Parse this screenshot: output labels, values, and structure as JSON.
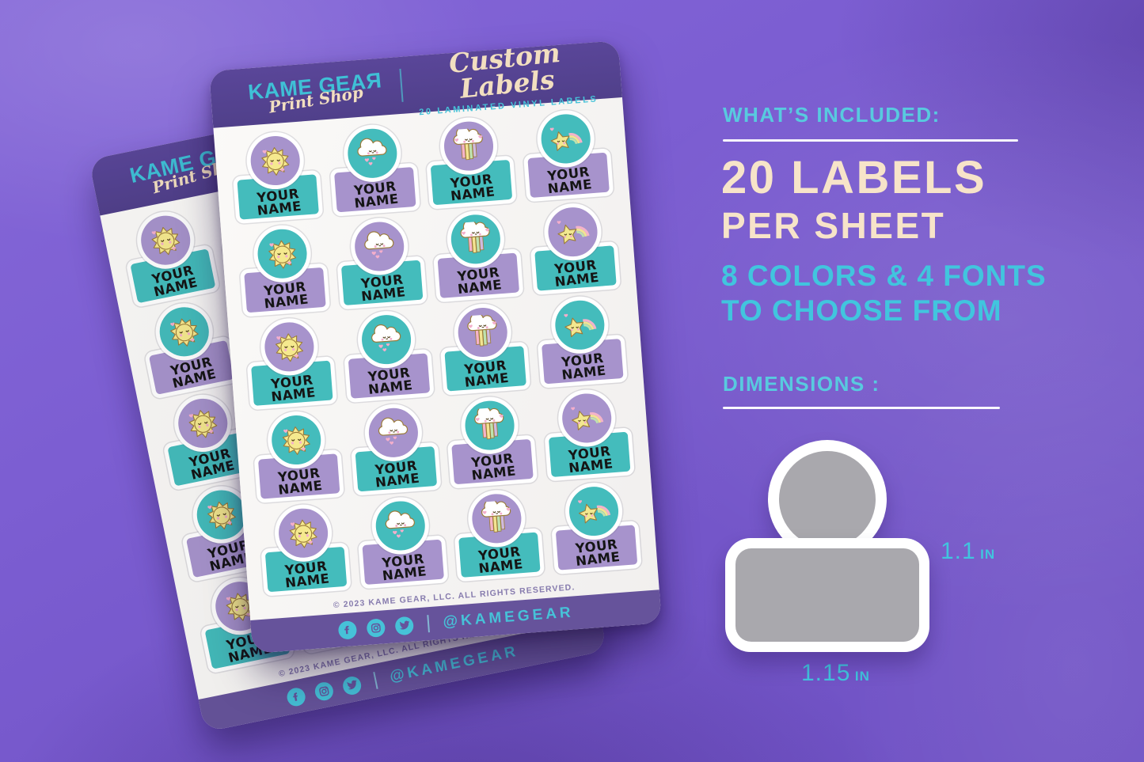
{
  "sheet": {
    "brand_name": "KAME GEAЯ",
    "brand_tagline": "Print Shop",
    "title": "Custom Labels",
    "subtitle": "20 LAMINATED VINYL LABELS",
    "label_name_line1": "YOUR",
    "label_name_line2": "NAME",
    "grid": {
      "rows": 5,
      "cols": 4,
      "column_icons": [
        "sun",
        "rain-cloud",
        "rainbow-cloud",
        "star-rainbow"
      ],
      "color_pattern": "checkerboard",
      "circle_colors": [
        "purple",
        "teal"
      ],
      "body_colors": [
        "teal",
        "purple"
      ]
    },
    "copyright": "© 2023 KAME GEAR, LLC. ALL RIGHTS RESERVED.",
    "social_icons": [
      "facebook",
      "instagram",
      "twitter"
    ],
    "social_handle": "@KAMEGEAR"
  },
  "info_panel": {
    "included_heading": "WHAT’S INCLUDED:",
    "headline_line1": "20 LABELS",
    "headline_line2": "PER SHEET",
    "subheadline_line1": "8 COLORS & 4 FONTS",
    "subheadline_line2": "TO CHOOSE FROM",
    "dimensions_heading": "DIMENSIONS :",
    "dimension_height_value": "1.1",
    "dimension_width_value": "1.15",
    "dimension_unit": "IN"
  },
  "colors": {
    "background_purple": "#7a5fd0",
    "sheet_header_purple": "#544190",
    "sticker_teal": "#44bcbc",
    "sticker_purple": "#a793cc",
    "logo_teal": "#3fc0d6",
    "cream_text": "#f7e4c9",
    "cyan_text": "#41c5de",
    "diagram_gray": "#a9a8ad"
  }
}
